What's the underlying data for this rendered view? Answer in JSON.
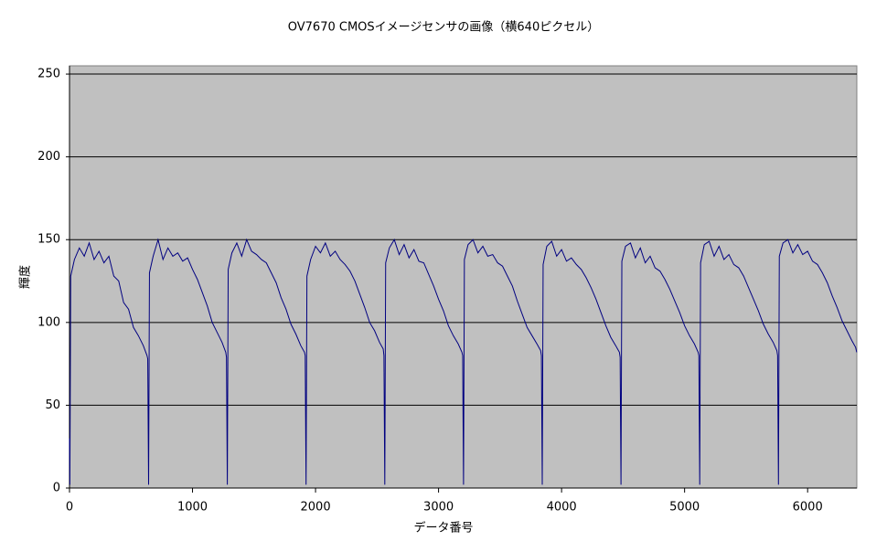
{
  "chart_data": {
    "type": "line",
    "title": "OV7670 CMOSイメージセンサの画像（横640ピクセル）",
    "x_label": "データ番号",
    "y_label": "輝度",
    "xlim": [
      0,
      6400
    ],
    "ylim": [
      0,
      255
    ],
    "xticks": [
      0,
      1000,
      2000,
      3000,
      4000,
      5000,
      6000
    ],
    "yticks": [
      0,
      50,
      100,
      150,
      200,
      250
    ],
    "grid": true,
    "background": "#c0c0c0",
    "x": [
      0,
      3,
      10,
      40,
      80,
      120,
      160,
      200,
      240,
      280,
      320,
      360,
      400,
      440,
      480,
      520,
      560,
      600,
      630,
      636,
      643,
      650,
      680,
      720,
      760,
      800,
      840,
      880,
      920,
      960,
      1000,
      1040,
      1080,
      1120,
      1160,
      1200,
      1240,
      1270,
      1276,
      1283,
      1290,
      1320,
      1360,
      1400,
      1440,
      1480,
      1520,
      1560,
      1600,
      1640,
      1680,
      1720,
      1760,
      1800,
      1840,
      1880,
      1910,
      1916,
      1923,
      1930,
      1960,
      2000,
      2040,
      2080,
      2120,
      2160,
      2200,
      2240,
      2280,
      2320,
      2360,
      2400,
      2440,
      2480,
      2520,
      2550,
      2556,
      2563,
      2570,
      2600,
      2640,
      2680,
      2720,
      2760,
      2800,
      2840,
      2880,
      2920,
      2960,
      3000,
      3040,
      3080,
      3120,
      3160,
      3190,
      3196,
      3203,
      3210,
      3240,
      3280,
      3320,
      3360,
      3400,
      3440,
      3480,
      3520,
      3560,
      3600,
      3640,
      3680,
      3720,
      3760,
      3800,
      3830,
      3836,
      3843,
      3850,
      3880,
      3920,
      3960,
      4000,
      4040,
      4080,
      4120,
      4160,
      4200,
      4240,
      4280,
      4320,
      4360,
      4400,
      4440,
      4470,
      4476,
      4483,
      4490,
      4520,
      4560,
      4600,
      4640,
      4680,
      4720,
      4760,
      4800,
      4840,
      4880,
      4920,
      4960,
      5000,
      5040,
      5080,
      5110,
      5116,
      5123,
      5130,
      5160,
      5200,
      5240,
      5280,
      5320,
      5360,
      5400,
      5440,
      5480,
      5520,
      5560,
      5600,
      5640,
      5680,
      5720,
      5750,
      5756,
      5763,
      5770,
      5800,
      5840,
      5880,
      5920,
      5960,
      6000,
      6040,
      6080,
      6120,
      6160,
      6200,
      6240,
      6280,
      6320,
      6360,
      6390,
      6399
    ],
    "series": [
      {
        "color": "#000080",
        "values": [
          30,
          2,
          128,
          138,
          145,
          140,
          148,
          138,
          143,
          136,
          140,
          128,
          125,
          112,
          108,
          97,
          92,
          86,
          80,
          78,
          2,
          130,
          140,
          150,
          138,
          145,
          140,
          142,
          137,
          139,
          132,
          126,
          118,
          110,
          100,
          94,
          88,
          82,
          79,
          2,
          132,
          142,
          148,
          140,
          150,
          143,
          141,
          138,
          136,
          130,
          124,
          115,
          108,
          99,
          93,
          86,
          82,
          80,
          2,
          128,
          138,
          146,
          142,
          148,
          140,
          143,
          138,
          135,
          131,
          125,
          117,
          109,
          100,
          95,
          88,
          84,
          80,
          2,
          136,
          145,
          150,
          141,
          147,
          139,
          144,
          137,
          136,
          129,
          122,
          114,
          107,
          98,
          92,
          87,
          82,
          80,
          2,
          138,
          147,
          150,
          142,
          146,
          140,
          141,
          136,
          134,
          128,
          122,
          113,
          105,
          97,
          92,
          87,
          83,
          80,
          2,
          135,
          146,
          149,
          140,
          144,
          137,
          139,
          135,
          132,
          127,
          121,
          114,
          106,
          98,
          91,
          86,
          82,
          79,
          2,
          137,
          146,
          148,
          139,
          145,
          136,
          140,
          133,
          131,
          126,
          120,
          113,
          106,
          98,
          92,
          87,
          82,
          80,
          2,
          136,
          147,
          149,
          140,
          146,
          138,
          141,
          135,
          133,
          128,
          121,
          114,
          107,
          99,
          93,
          88,
          83,
          80,
          2,
          140,
          148,
          150,
          142,
          147,
          141,
          143,
          137,
          135,
          130,
          124,
          116,
          109,
          101,
          95,
          89,
          85,
          82
        ]
      }
    ]
  }
}
